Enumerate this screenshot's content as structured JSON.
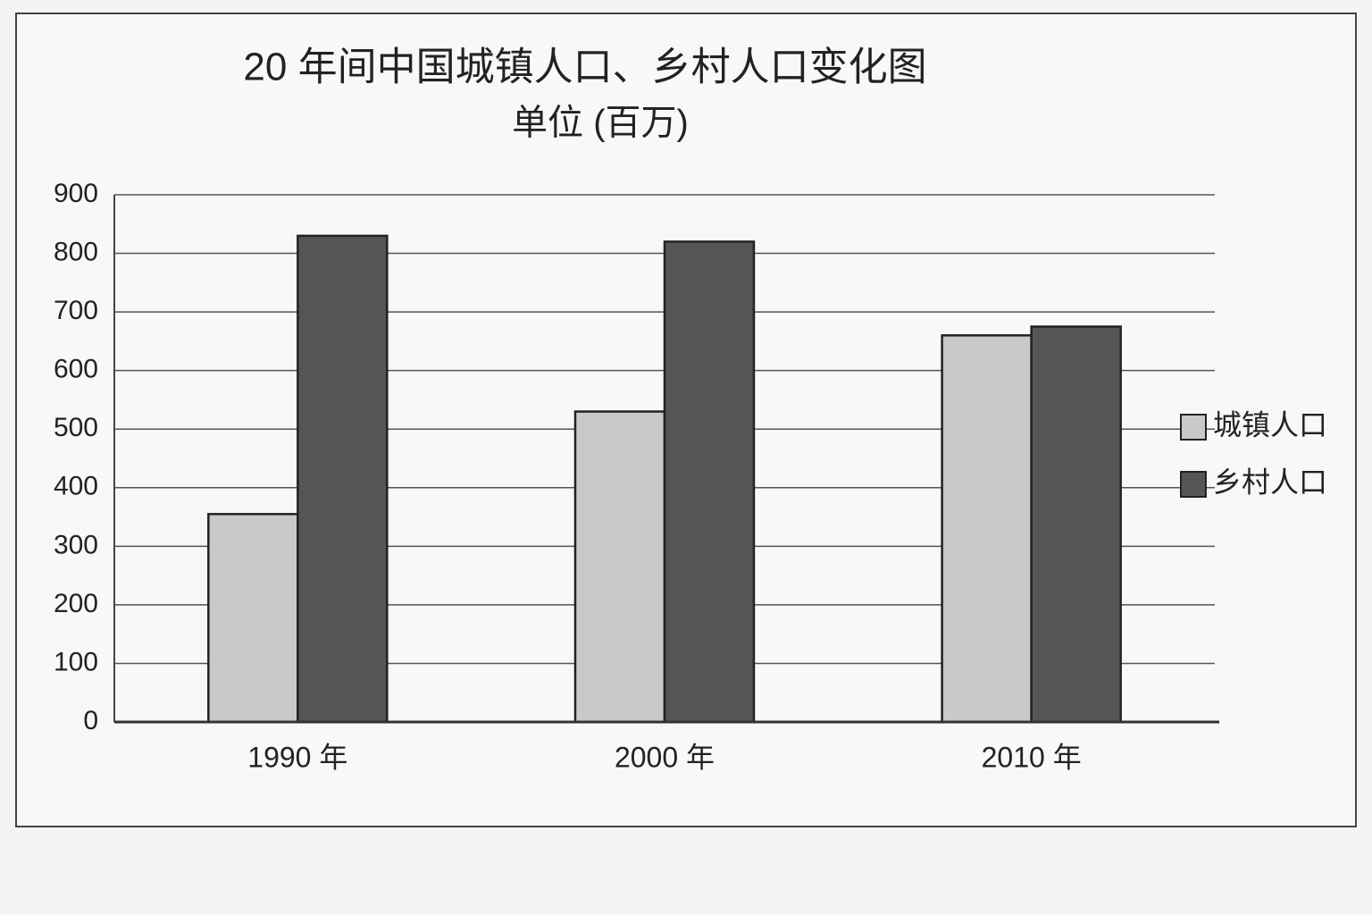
{
  "chart_data": {
    "type": "bar",
    "title": "20 年间中国城镇人口、乡村人口变化图",
    "subtitle": "单位 (百万)",
    "categories": [
      "1990 年",
      "2000 年",
      "2010 年"
    ],
    "series": [
      {
        "name": "城镇人口",
        "color": "#c9c9c9",
        "values": [
          355,
          530,
          660
        ]
      },
      {
        "name": "乡村人口",
        "color": "#555555",
        "values": [
          830,
          820,
          675
        ]
      }
    ],
    "ylim": [
      0,
      900
    ],
    "yticks": [
      0,
      100,
      200,
      300,
      400,
      500,
      600,
      700,
      800,
      900
    ],
    "grid": true,
    "legend": "right"
  }
}
